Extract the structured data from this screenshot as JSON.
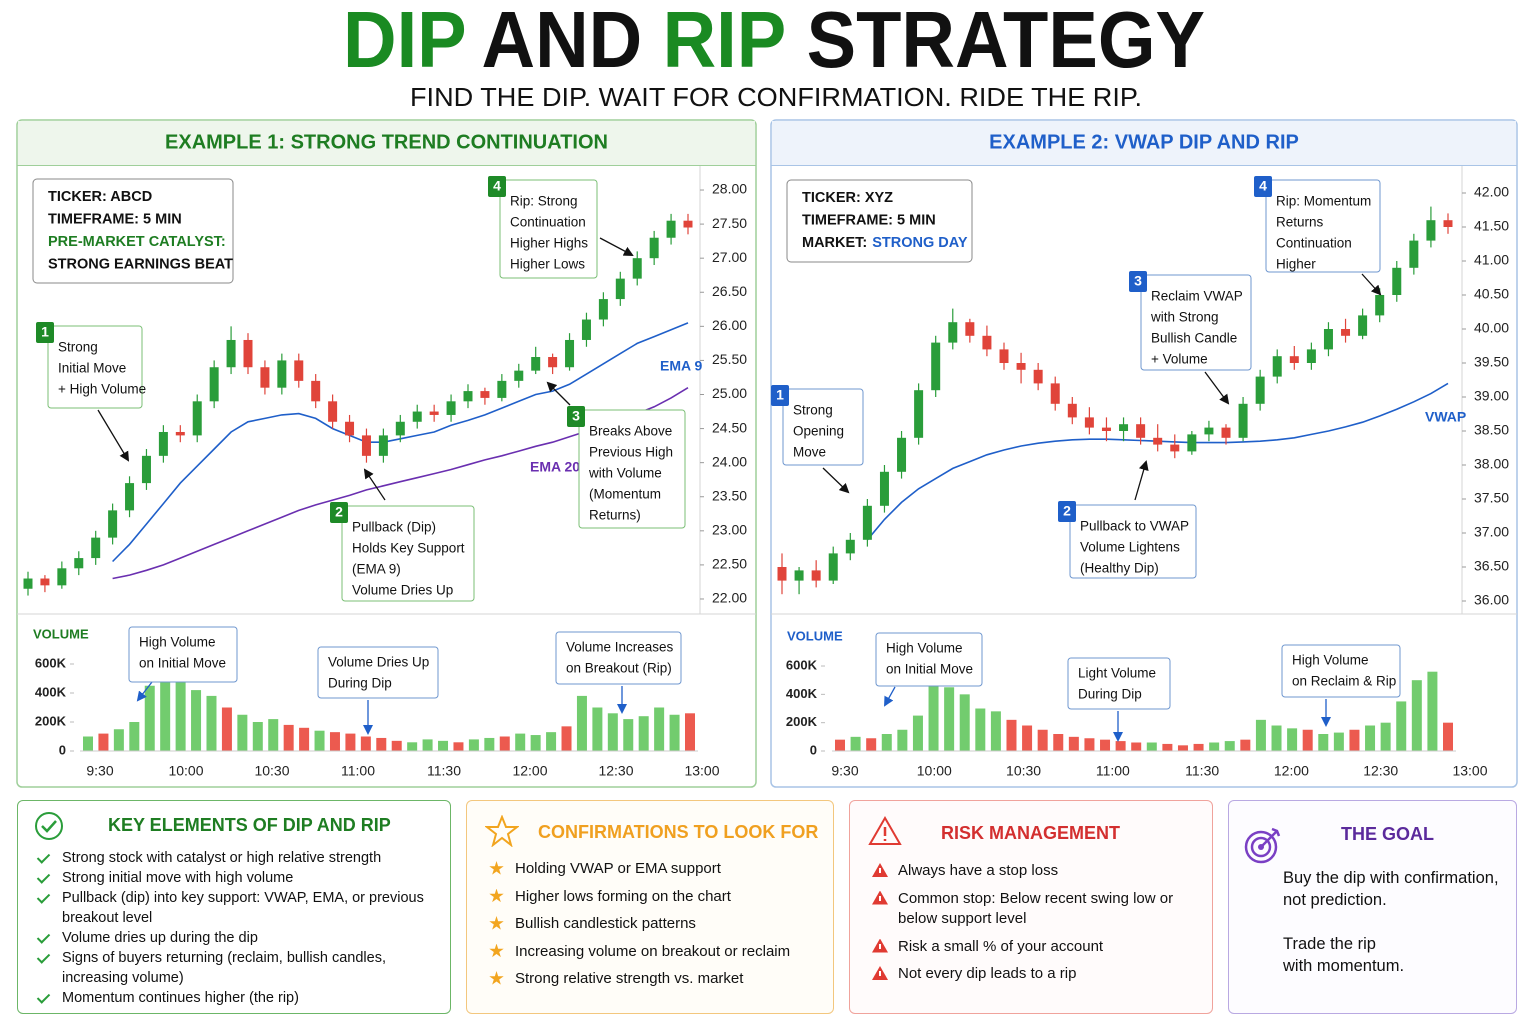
{
  "header": {
    "title": [
      "DIP",
      "AND",
      "RIP",
      "STRATEGY"
    ],
    "subtitle": "FIND THE DIP. WAIT FOR CONFIRMATION. RIDE THE RIP."
  },
  "chart_data": [
    {
      "type": "candlestick",
      "title": "EXAMPLE 1: STRONG TREND CONTINUATION",
      "panel_color": "#1e7d22",
      "up_color": "#2a9d3a",
      "down_color": "#e0443a",
      "info": [
        [
          "TICKER: ABCD"
        ],
        [
          "TIMEFRAME: 5 MIN"
        ],
        [
          "PRE-MARKET CATALYST:"
        ],
        [
          "STRONG EARNINGS BEAT"
        ]
      ],
      "ylim": [
        21.85,
        28.15
      ],
      "yticks": [
        {
          "value": 22,
          "label": "22.00"
        },
        {
          "value": 22.5,
          "label": "22.50"
        },
        {
          "value": 23,
          "label": "23.00"
        },
        {
          "value": 23.5,
          "label": "23.50"
        },
        {
          "value": 24,
          "label": "24.00"
        },
        {
          "value": 24.5,
          "label": "24.50"
        },
        {
          "value": 25,
          "label": "25.00"
        },
        {
          "value": 25.5,
          "label": "25.50"
        },
        {
          "value": 26,
          "label": "26.00"
        },
        {
          "value": 26.5,
          "label": "26.50"
        },
        {
          "value": 27,
          "label": "27.00"
        },
        {
          "value": 27.5,
          "label": "27.50"
        },
        {
          "value": 28,
          "label": "28.00"
        }
      ],
      "time_labels": [
        "9:30",
        "10:00",
        "10:30",
        "11:00",
        "11:30",
        "12:00",
        "12:30",
        "13:00"
      ],
      "ohlc": [
        [
          22.15,
          22.4,
          22.05,
          22.3
        ],
        [
          22.3,
          22.35,
          22.1,
          22.2
        ],
        [
          22.2,
          22.55,
          22.15,
          22.45
        ],
        [
          22.45,
          22.7,
          22.35,
          22.6
        ],
        [
          22.6,
          23.0,
          22.5,
          22.9
        ],
        [
          22.9,
          23.4,
          22.8,
          23.3
        ],
        [
          23.3,
          23.8,
          23.2,
          23.7
        ],
        [
          23.7,
          24.2,
          23.6,
          24.1
        ],
        [
          24.1,
          24.55,
          24.0,
          24.45
        ],
        [
          24.45,
          24.55,
          24.3,
          24.4
        ],
        [
          24.4,
          25.0,
          24.3,
          24.9
        ],
        [
          24.9,
          25.5,
          24.8,
          25.4
        ],
        [
          25.4,
          26.0,
          25.3,
          25.8
        ],
        [
          25.8,
          25.9,
          25.3,
          25.4
        ],
        [
          25.4,
          25.5,
          25.0,
          25.1
        ],
        [
          25.1,
          25.6,
          25.0,
          25.5
        ],
        [
          25.5,
          25.6,
          25.1,
          25.2
        ],
        [
          25.2,
          25.3,
          24.8,
          24.9
        ],
        [
          24.9,
          25.0,
          24.5,
          24.6
        ],
        [
          24.6,
          24.7,
          24.3,
          24.4
        ],
        [
          24.4,
          24.5,
          24.0,
          24.1
        ],
        [
          24.1,
          24.5,
          24.0,
          24.4
        ],
        [
          24.4,
          24.7,
          24.3,
          24.6
        ],
        [
          24.6,
          24.85,
          24.5,
          24.75
        ],
        [
          24.75,
          24.85,
          24.6,
          24.7
        ],
        [
          24.7,
          25.0,
          24.6,
          24.9
        ],
        [
          24.9,
          25.15,
          24.8,
          25.05
        ],
        [
          25.05,
          25.1,
          24.85,
          24.95
        ],
        [
          24.95,
          25.3,
          24.9,
          25.2
        ],
        [
          25.2,
          25.45,
          25.1,
          25.35
        ],
        [
          25.35,
          25.7,
          25.3,
          25.55
        ],
        [
          25.55,
          25.6,
          25.3,
          25.4
        ],
        [
          25.4,
          25.9,
          25.35,
          25.8
        ],
        [
          25.8,
          26.2,
          25.7,
          26.1
        ],
        [
          26.1,
          26.5,
          26.0,
          26.4
        ],
        [
          26.4,
          26.8,
          26.3,
          26.7
        ],
        [
          26.7,
          27.1,
          26.6,
          27.0
        ],
        [
          27.0,
          27.4,
          26.9,
          27.3
        ],
        [
          27.3,
          27.65,
          27.2,
          27.55
        ],
        [
          27.55,
          27.65,
          27.35,
          27.45
        ]
      ],
      "series": [
        {
          "name": "EMA 9",
          "color": "#1f5fc9",
          "values": [
            null,
            null,
            null,
            null,
            null,
            22.55,
            22.8,
            23.1,
            23.4,
            23.7,
            23.95,
            24.2,
            24.45,
            24.6,
            24.65,
            24.7,
            24.72,
            24.65,
            24.5,
            24.4,
            24.3,
            24.3,
            24.35,
            24.4,
            24.45,
            24.55,
            24.62,
            24.7,
            24.8,
            24.9,
            25.0,
            25.05,
            25.15,
            25.3,
            25.45,
            25.6,
            25.75,
            25.85,
            25.95,
            26.05
          ]
        },
        {
          "name": "EMA 20",
          "color": "#6a2fb0",
          "values": [
            null,
            null,
            null,
            null,
            null,
            22.3,
            22.35,
            22.42,
            22.5,
            22.6,
            22.7,
            22.8,
            22.9,
            23.0,
            23.1,
            23.2,
            23.3,
            23.38,
            23.45,
            23.52,
            23.6,
            23.66,
            23.72,
            23.78,
            23.84,
            23.9,
            23.97,
            24.04,
            24.1,
            24.17,
            24.24,
            24.3,
            24.38,
            24.46,
            24.54,
            24.62,
            24.72,
            24.82,
            24.95,
            25.1
          ]
        }
      ],
      "volume": {
        "label": "VOLUME",
        "ylim": [
          0,
          800000
        ],
        "yticks": [
          0,
          {
            "value": 200000,
            "label": "200K"
          },
          {
            "value": 400000,
            "label": "400K"
          },
          {
            "value": 600000,
            "label": "600K"
          }
        ],
        "values": [
          100000,
          120000,
          150000,
          200000,
          450000,
          580000,
          500000,
          420000,
          380000,
          300000,
          250000,
          200000,
          220000,
          180000,
          160000,
          140000,
          130000,
          120000,
          100000,
          90000,
          70000,
          60000,
          80000,
          70000,
          60000,
          80000,
          90000,
          100000,
          120000,
          110000,
          130000,
          170000,
          380000,
          300000,
          260000,
          220000,
          240000,
          300000,
          250000,
          260000
        ]
      },
      "annotations": [
        {
          "number": "1",
          "lines": [
            "Strong",
            "Initial Move",
            "+ High Volume"
          ]
        },
        {
          "number": "2",
          "lines": [
            "Pullback (Dip)",
            "Holds Key Support",
            "(EMA 9)",
            "Volume Dries Up"
          ]
        },
        {
          "number": "3",
          "lines": [
            "Breaks Above",
            "Previous High",
            "with Volume",
            "(Momentum",
            "Returns)"
          ]
        },
        {
          "number": "4",
          "lines": [
            "Rip: Strong",
            "Continuation",
            "Higher Highs",
            "Higher Lows"
          ]
        }
      ],
      "volume_annotations": [
        {
          "lines": [
            "High Volume",
            "on Initial Move"
          ]
        },
        {
          "lines": [
            "Volume Dries Up",
            "During Dip"
          ]
        },
        {
          "lines": [
            "Volume Increases",
            "on Breakout (Rip)"
          ]
        }
      ]
    },
    {
      "type": "candlestick",
      "title": "EXAMPLE 2: VWAP DIP AND RIP",
      "panel_color": "#1f5fc9",
      "up_color": "#2a9d3a",
      "down_color": "#e0443a",
      "info": [
        [
          "TICKER: XYZ"
        ],
        [
          "TIMEFRAME: 5 MIN"
        ],
        [
          "MARKET:",
          "STRONG DAY"
        ]
      ],
      "ylim": [
        35.85,
        42.15
      ],
      "yticks": [
        {
          "value": 36,
          "label": "36.00"
        },
        {
          "value": 36.5,
          "label": "36.50"
        },
        {
          "value": 37,
          "label": "37.00"
        },
        {
          "value": 37.5,
          "label": "37.50"
        },
        {
          "value": 38,
          "label": "38.00"
        },
        {
          "value": 38.5,
          "label": "38.50"
        },
        {
          "value": 39,
          "label": "39.00"
        },
        {
          "value": 39.5,
          "label": "39.50"
        },
        {
          "value": 40,
          "label": "40.00"
        },
        {
          "value": 40.5,
          "label": "40.50"
        },
        {
          "value": 41,
          "label": "41.00"
        },
        {
          "value": 41.5,
          "label": "41.50"
        },
        {
          "value": 42,
          "label": "42.00"
        }
      ],
      "time_labels": [
        "9:30",
        "10:00",
        "10:30",
        "11:00",
        "11:30",
        "12:00",
        "12:30",
        "13:00"
      ],
      "ohlc": [
        [
          36.5,
          36.7,
          36.1,
          36.3
        ],
        [
          36.3,
          36.5,
          36.1,
          36.45
        ],
        [
          36.45,
          36.6,
          36.2,
          36.3
        ],
        [
          36.3,
          36.8,
          36.25,
          36.7
        ],
        [
          36.7,
          37.0,
          36.6,
          36.9
        ],
        [
          36.9,
          37.5,
          36.8,
          37.4
        ],
        [
          37.4,
          38.0,
          37.3,
          37.9
        ],
        [
          37.9,
          38.5,
          37.8,
          38.4
        ],
        [
          38.4,
          39.2,
          38.3,
          39.1
        ],
        [
          39.1,
          39.9,
          39.0,
          39.8
        ],
        [
          39.8,
          40.3,
          39.7,
          40.1
        ],
        [
          40.1,
          40.15,
          39.8,
          39.9
        ],
        [
          39.9,
          40.05,
          39.6,
          39.7
        ],
        [
          39.7,
          39.8,
          39.4,
          39.5
        ],
        [
          39.5,
          39.65,
          39.2,
          39.4
        ],
        [
          39.4,
          39.5,
          39.1,
          39.2
        ],
        [
          39.2,
          39.3,
          38.8,
          38.9
        ],
        [
          38.9,
          39.0,
          38.6,
          38.7
        ],
        [
          38.7,
          38.85,
          38.45,
          38.55
        ],
        [
          38.55,
          38.7,
          38.35,
          38.5
        ],
        [
          38.5,
          38.7,
          38.35,
          38.6
        ],
        [
          38.6,
          38.7,
          38.3,
          38.4
        ],
        [
          38.4,
          38.6,
          38.2,
          38.3
        ],
        [
          38.3,
          38.45,
          38.1,
          38.2
        ],
        [
          38.2,
          38.5,
          38.15,
          38.45
        ],
        [
          38.45,
          38.65,
          38.35,
          38.55
        ],
        [
          38.55,
          38.6,
          38.3,
          38.4
        ],
        [
          38.4,
          39.0,
          38.35,
          38.9
        ],
        [
          38.9,
          39.4,
          38.8,
          39.3
        ],
        [
          39.3,
          39.7,
          39.2,
          39.6
        ],
        [
          39.6,
          39.75,
          39.4,
          39.5
        ],
        [
          39.5,
          39.8,
          39.4,
          39.7
        ],
        [
          39.7,
          40.1,
          39.6,
          40.0
        ],
        [
          40.0,
          40.15,
          39.8,
          39.9
        ],
        [
          39.9,
          40.3,
          39.85,
          40.2
        ],
        [
          40.2,
          40.6,
          40.1,
          40.5
        ],
        [
          40.5,
          41.0,
          40.4,
          40.9
        ],
        [
          40.9,
          41.4,
          40.8,
          41.3
        ],
        [
          41.3,
          41.8,
          41.2,
          41.6
        ],
        [
          41.6,
          41.7,
          41.4,
          41.5
        ]
      ],
      "series": [
        {
          "name": "VWAP",
          "color": "#1f5fc9",
          "values": [
            null,
            null,
            null,
            null,
            null,
            36.9,
            37.2,
            37.45,
            37.65,
            37.8,
            37.95,
            38.05,
            38.15,
            38.22,
            38.28,
            38.32,
            38.35,
            38.37,
            38.38,
            38.38,
            38.37,
            38.36,
            38.35,
            38.34,
            38.33,
            38.33,
            38.33,
            38.34,
            38.35,
            38.37,
            38.4,
            38.45,
            38.5,
            38.56,
            38.63,
            38.72,
            38.82,
            38.93,
            39.05,
            39.2
          ]
        }
      ],
      "volume": {
        "label": "VOLUME",
        "ylim": [
          0,
          800000
        ],
        "yticks": [
          0,
          {
            "value": 200000,
            "label": "200K"
          },
          {
            "value": 400000,
            "label": "400K"
          },
          {
            "value": 600000,
            "label": "600K"
          }
        ],
        "values": [
          80000,
          100000,
          90000,
          120000,
          150000,
          250000,
          580000,
          450000,
          400000,
          300000,
          280000,
          220000,
          180000,
          150000,
          120000,
          100000,
          90000,
          80000,
          70000,
          60000,
          60000,
          50000,
          40000,
          50000,
          60000,
          70000,
          80000,
          220000,
          180000,
          160000,
          150000,
          120000,
          130000,
          150000,
          180000,
          200000,
          350000,
          500000,
          560000,
          200000
        ]
      },
      "annotations": [
        {
          "number": "1",
          "lines": [
            "Strong",
            "Opening",
            "Move"
          ]
        },
        {
          "number": "2",
          "lines": [
            "Pullback to VWAP",
            "Volume Lightens",
            "(Healthy Dip)"
          ]
        },
        {
          "number": "3",
          "lines": [
            "Reclaim VWAP",
            "with Strong",
            "Bullish Candle",
            "+ Volume"
          ]
        },
        {
          "number": "4",
          "lines": [
            "Rip: Momentum",
            "Returns",
            "Continuation",
            "Higher"
          ]
        }
      ],
      "volume_annotations": [
        {
          "lines": [
            "High Volume",
            "on Initial Move"
          ]
        },
        {
          "lines": [
            "Light Volume",
            "During Dip"
          ]
        },
        {
          "lines": [
            "High Volume",
            "on Reclaim & Rip"
          ]
        }
      ]
    }
  ],
  "panels": [
    {
      "title": "KEY ELEMENTS OF DIP AND RIP",
      "items": [
        "Strong stock with catalyst or high relative strength",
        "Strong initial move with high volume",
        "Pullback (dip) into key support: VWAP, EMA, or previous breakout level",
        "Volume dries up during the dip",
        "Signs of buyers returning (reclaim, bullish candles, increasing volume)",
        "Momentum continues higher (the rip)"
      ]
    },
    {
      "title": "CONFIRMATIONS TO LOOK FOR",
      "items": [
        "Holding VWAP or EMA support",
        "Higher lows forming on the chart",
        "Bullish candlestick patterns",
        "Increasing volume on breakout or reclaim",
        "Strong relative strength vs. market"
      ]
    },
    {
      "title": "RISK MANAGEMENT",
      "items": [
        "Always have a stop loss",
        "Common stop: Below recent swing low or below support level",
        "Risk a small % of your account",
        "Not every dip leads to a rip"
      ]
    },
    {
      "title": "THE GOAL",
      "paragraphs": [
        [
          "Buy the dip with confirmation,",
          "not prediction."
        ],
        [
          "Trade the rip",
          "with momentum."
        ]
      ]
    }
  ]
}
